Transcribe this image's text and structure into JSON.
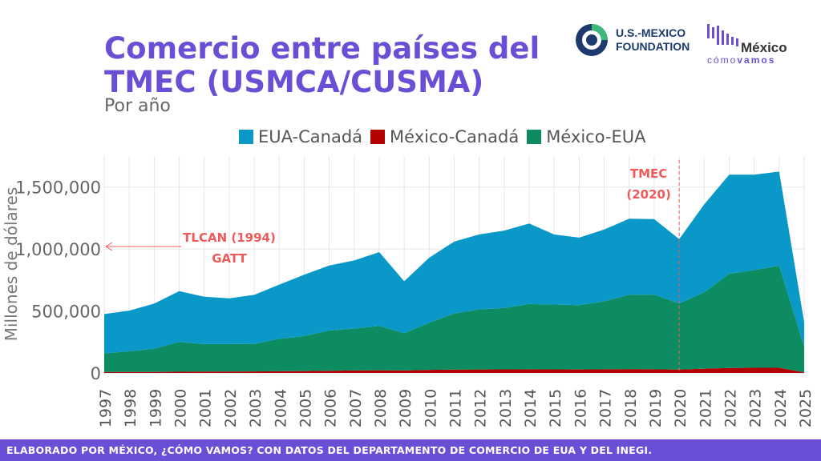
{
  "header": {
    "title": "Comercio entre países del TMEC (USMCA/CUSMA)",
    "subtitle": "Por año"
  },
  "logos": {
    "usmx_line1": "U.S.-MEXICO",
    "usmx_line2": "FOUNDATION",
    "mcv_name": "México",
    "mcv_sub_a": "cómo",
    "mcv_sub_b": "vamos"
  },
  "footer": {
    "text": "ELABORADO POR MÉXICO, ¿CÓMO VAMOS? CON DATOS DEL DEPARTAMENTO DE COMERCIO DE EUA Y DEL INEGI."
  },
  "colors": {
    "accent": "#6a4fd6",
    "eua_canada": "#0a98c9",
    "mexico_canada": "#b30000",
    "mexico_eua": "#0c8c60",
    "annotation": "#f05a5a"
  },
  "chart_data": {
    "type": "area",
    "stacked": true,
    "title": "Comercio entre países del TMEC (USMCA/CUSMA)",
    "subtitle": "Por año",
    "xlabel": "",
    "ylabel": "Millones de dólares",
    "ylim": [
      0,
      1750000
    ],
    "yticks": [
      0,
      500000,
      1000000,
      1500000
    ],
    "ytick_labels": [
      "0",
      "500,000",
      "1,000,000",
      "1,500,000"
    ],
    "grid": true,
    "legend_position": "top",
    "x": [
      "1997",
      "1998",
      "1999",
      "2000",
      "2001",
      "2002",
      "2003",
      "2004",
      "2005",
      "2006",
      "2007",
      "2008",
      "2009",
      "2010",
      "2011",
      "2012",
      "2013",
      "2014",
      "2015",
      "2016",
      "2017",
      "2018",
      "2019",
      "2020",
      "2021",
      "2022",
      "2023",
      "2024",
      "2025"
    ],
    "series": [
      {
        "name": "México-Canadá",
        "color": "#b30000",
        "values": [
          7000,
          7500,
          8500,
          10000,
          11000,
          11500,
          12000,
          13500,
          15500,
          18000,
          20000,
          22000,
          20000,
          25000,
          27500,
          28500,
          29000,
          30000,
          29000,
          28500,
          30000,
          31500,
          30000,
          28000,
          35000,
          40000,
          42000,
          42000,
          5000
        ]
      },
      {
        "name": "México-EUA",
        "color": "#0c8c60",
        "values": [
          150000,
          167500,
          186500,
          240000,
          222000,
          221500,
          223000,
          261500,
          282500,
          324000,
          338000,
          358000,
          300000,
          380000,
          452500,
          484500,
          495000,
          526000,
          523000,
          518500,
          548000,
          598500,
          602000,
          532000,
          615000,
          760000,
          788000,
          823000,
          205000
        ]
      },
      {
        "name": "EUA-Canadá",
        "color": "#0a98c9",
        "values": [
          318000,
          328000,
          365000,
          410000,
          382000,
          369000,
          395000,
          438000,
          495000,
          525000,
          550000,
          595000,
          420000,
          525000,
          580000,
          605000,
          625000,
          650000,
          565000,
          545000,
          580000,
          615000,
          610000,
          520000,
          710000,
          800000,
          770000,
          760000,
          200000
        ]
      }
    ],
    "annotations": [
      {
        "x": "1994",
        "lines": [
          "TLCAN (1994)",
          "GATT"
        ],
        "style": "arrow-left"
      },
      {
        "x": "2020",
        "lines": [
          "TMEC",
          "(2020)"
        ],
        "style": "dashed-vertical"
      }
    ]
  }
}
